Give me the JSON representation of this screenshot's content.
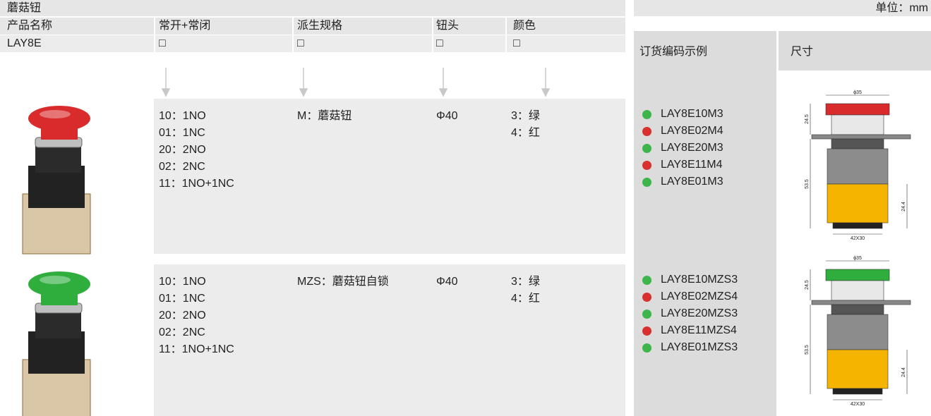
{
  "header": {
    "title": "蘑菇钮",
    "unit": "单位：mm"
  },
  "table": {
    "columns": [
      "产品名称",
      "常开+常闭",
      "派生规格",
      "钮头",
      "颜色"
    ],
    "code_row": [
      "LAY8E",
      "□",
      "□",
      "□",
      "□"
    ],
    "order_header": "订货编码示例",
    "size_header": "尺寸"
  },
  "products": [
    {
      "button_color": "#d92b2b",
      "contacts": [
        "10：1NO",
        "01：1NC",
        "20：2NO",
        "02：2NC",
        "11：1NO+1NC"
      ],
      "variant": "M：蘑菇钮",
      "head": "Φ40",
      "colors": [
        "3：绿",
        "4：红"
      ],
      "order_codes": [
        {
          "code": "LAY8E10M3",
          "color": "#3db54a"
        },
        {
          "code": "LAY8E02M4",
          "color": "#d7302f"
        },
        {
          "code": "LAY8E20M3",
          "color": "#3db54a"
        },
        {
          "code": "LAY8E11M4",
          "color": "#d7302f"
        },
        {
          "code": "LAY8E01M3",
          "color": "#3db54a"
        }
      ],
      "dimensions": {
        "diameter": "ϕ35",
        "top": "24.5",
        "total": "53.5",
        "bottom": "24.4",
        "base": "42X30"
      }
    },
    {
      "button_color": "#2fae3e",
      "contacts": [
        "10：1NO",
        "01：1NC",
        "20：2NO",
        "02：2NC",
        "11：1NO+1NC"
      ],
      "variant": "MZS：蘑菇钮自锁",
      "head": "Φ40",
      "colors": [
        "3：绿",
        "4：红"
      ],
      "order_codes": [
        {
          "code": "LAY8E10MZS3",
          "color": "#3db54a"
        },
        {
          "code": "LAY8E02MZS4",
          "color": "#d7302f"
        },
        {
          "code": "LAY8E20MZS3",
          "color": "#3db54a"
        },
        {
          "code": "LAY8E11MZS4",
          "color": "#d7302f"
        },
        {
          "code": "LAY8E01MZS3",
          "color": "#3db54a"
        }
      ],
      "dimensions": {
        "diameter": "ϕ35",
        "top": "24.5",
        "total": "53.5",
        "bottom": "24.4",
        "base": "42X30"
      }
    }
  ]
}
